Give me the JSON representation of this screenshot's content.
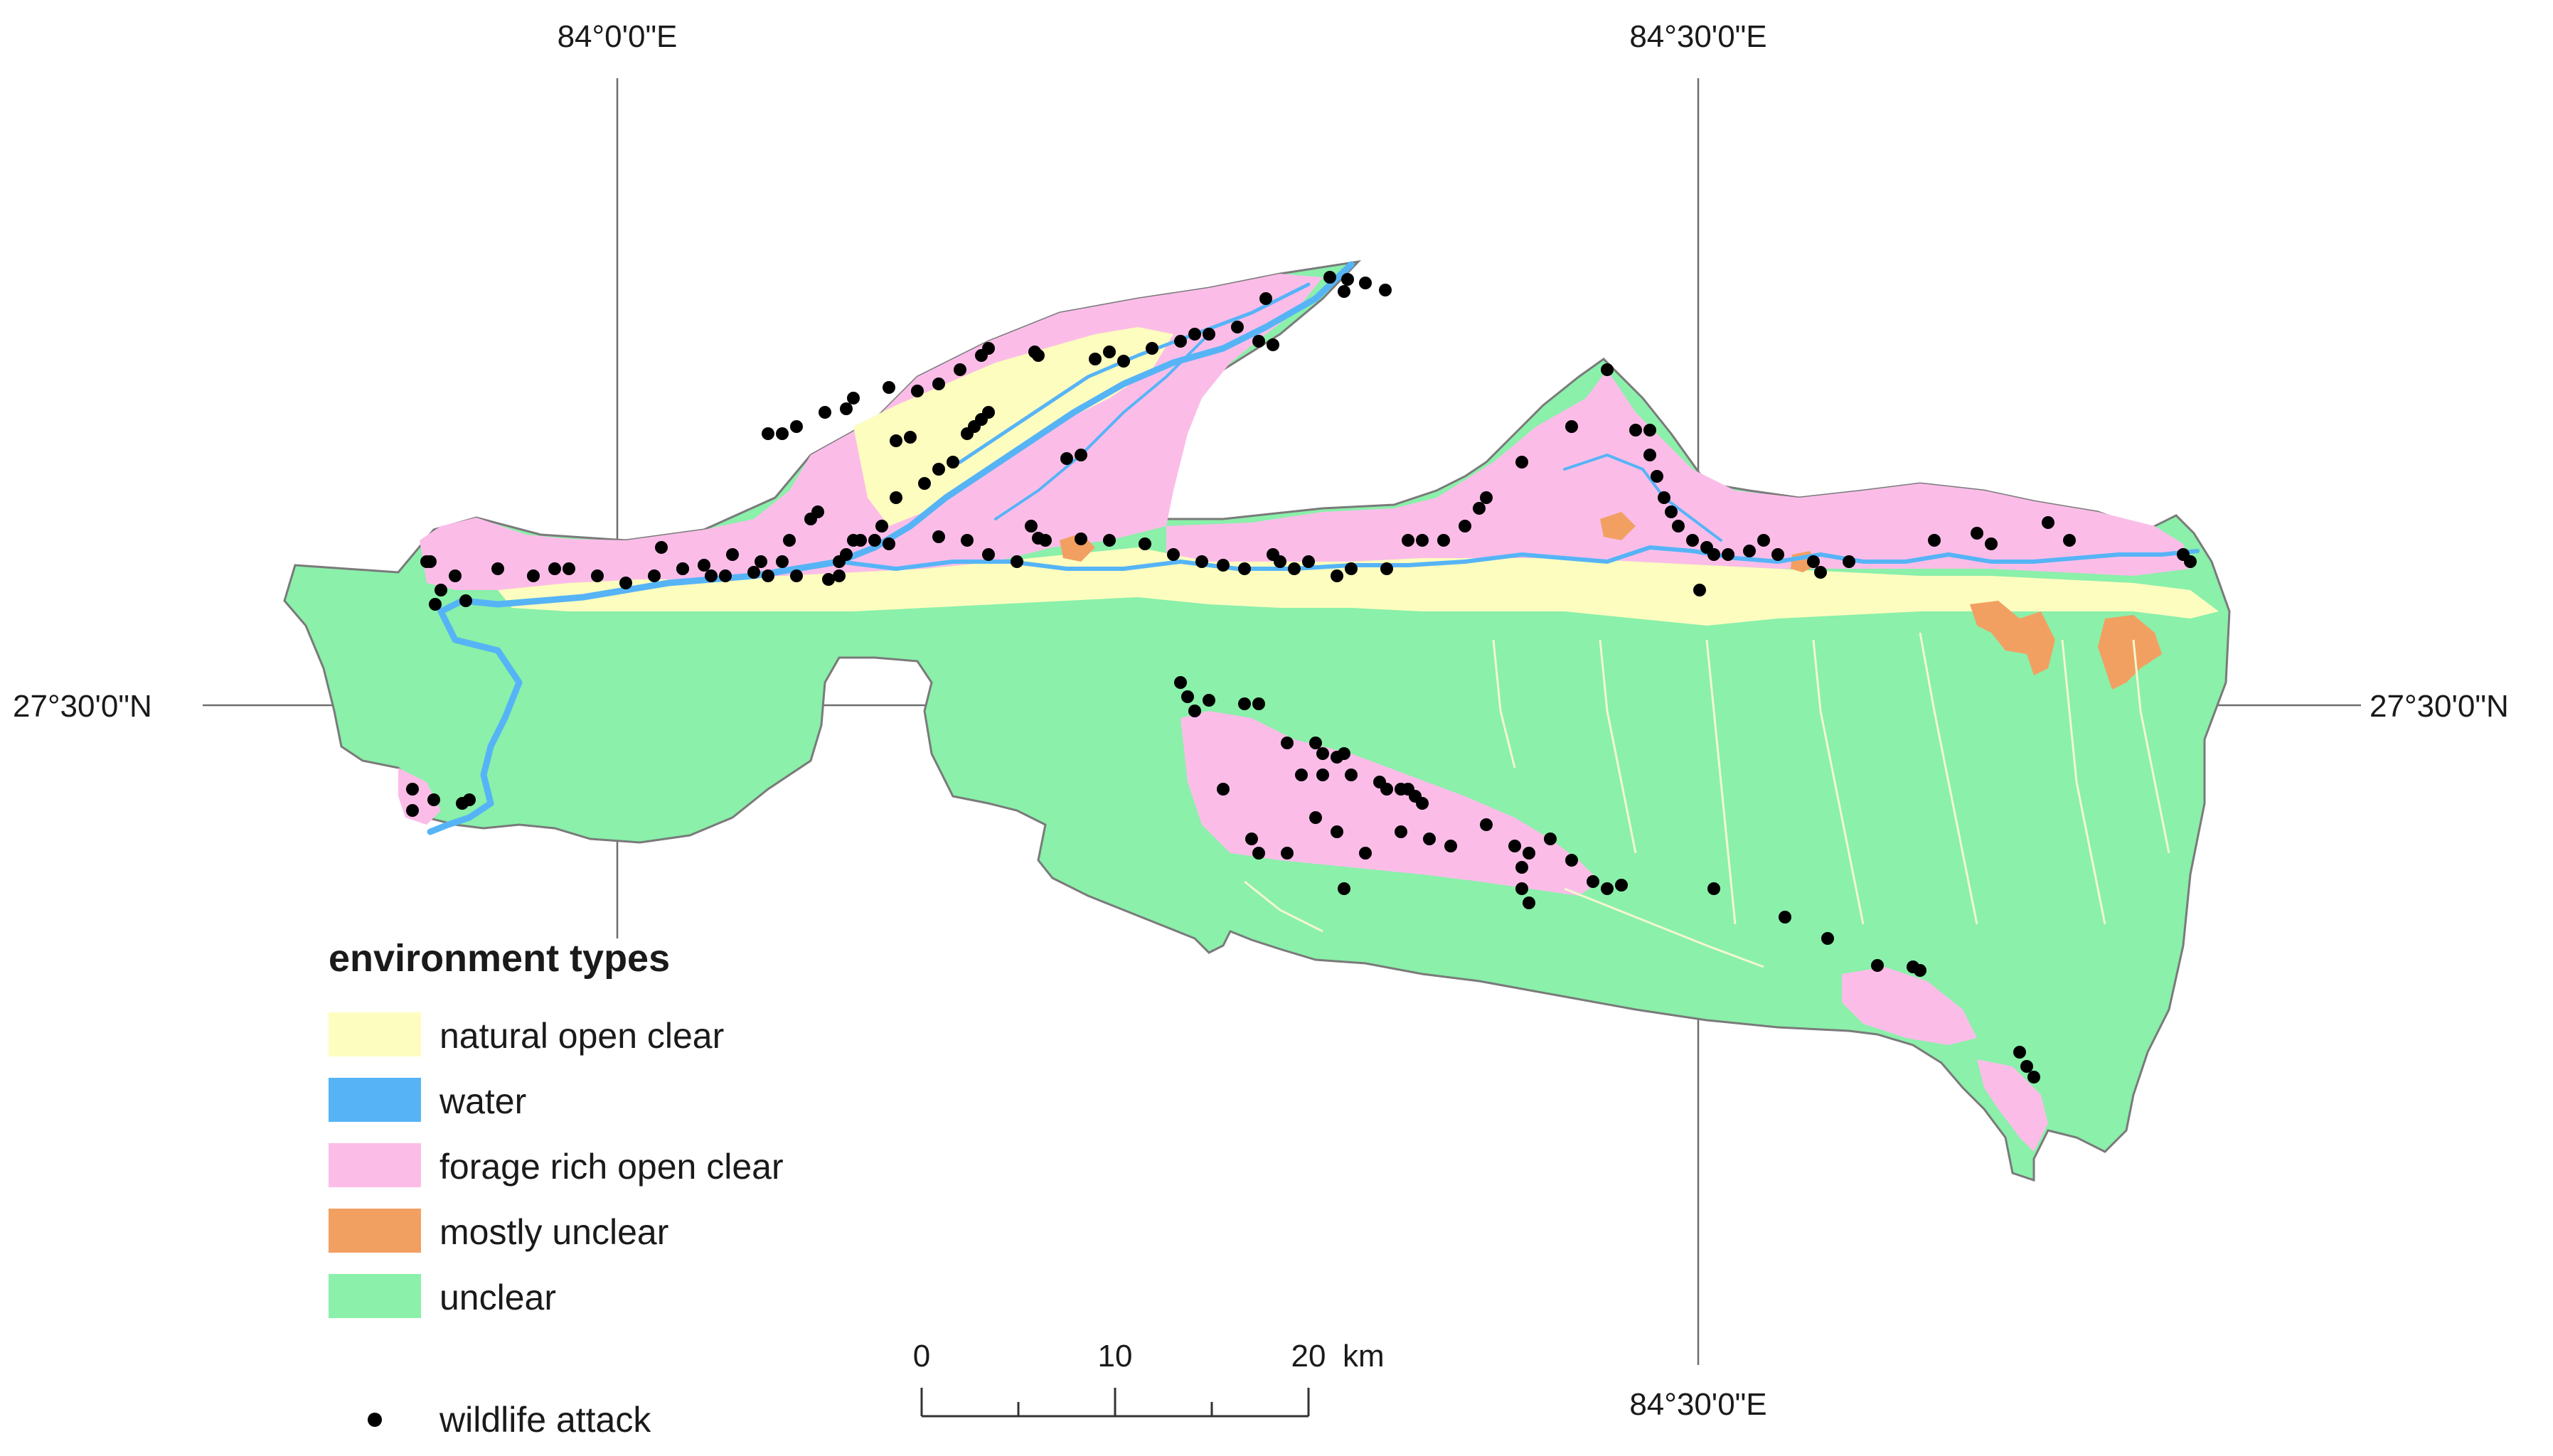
{
  "graticule": {
    "lon_top_left": "84°0'0\"E",
    "lon_top_right": "84°30'0\"E",
    "lon_bottom_right": "84°30'0\"E",
    "lat_left": "27°30'0\"N",
    "lat_right": "27°30'0\"N"
  },
  "legend": {
    "title": "environment types",
    "items": [
      {
        "label": "natural open clear",
        "color": "#fdfdbf"
      },
      {
        "label": "water",
        "color": "#56b4f6"
      },
      {
        "label": "forage rich open clear",
        "color": "#fbbde8"
      },
      {
        "label": "mostly unclear",
        "color": "#f2a062"
      },
      {
        "label": "unclear",
        "color": "#8af0aa"
      }
    ],
    "point_label": "wildlife attack",
    "point_color": "#000000"
  },
  "scale_bar": {
    "ticks": [
      "0",
      "10",
      "20"
    ],
    "unit": "km"
  }
}
